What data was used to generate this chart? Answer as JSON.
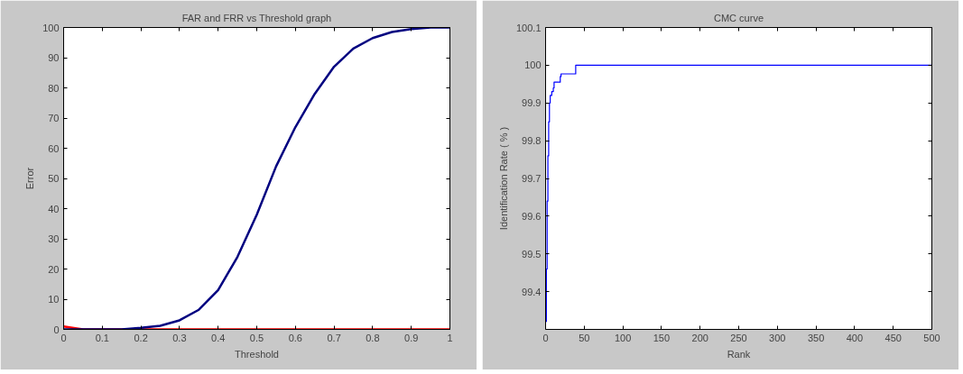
{
  "chart_data": [
    {
      "type": "line",
      "title": "FAR and FRR vs Threshold graph",
      "xlabel": "Threshold",
      "ylabel": "Error",
      "x": [
        0,
        0.05,
        0.1,
        0.15,
        0.2,
        0.25,
        0.3,
        0.35,
        0.4,
        0.45,
        0.5,
        0.55,
        0.6,
        0.65,
        0.7,
        0.75,
        0.8,
        0.85,
        0.9,
        0.95,
        1
      ],
      "series": [
        {
          "color": "#000080",
          "values": [
            0,
            0,
            0,
            0,
            0.5,
            1.2,
            3,
            6.5,
            13,
            24,
            38,
            54,
            67,
            78,
            87,
            93,
            96.5,
            98.5,
            99.5,
            100,
            100
          ]
        },
        {
          "color": "#ff0000",
          "values": [
            1,
            0,
            0,
            0,
            0,
            0,
            0,
            0,
            0,
            0,
            0,
            0,
            0,
            0,
            0,
            0,
            0,
            0,
            0,
            0,
            0
          ]
        }
      ],
      "xlim": [
        0,
        1
      ],
      "ylim": [
        0,
        100
      ],
      "xticks": [
        0,
        0.1,
        0.2,
        0.3,
        0.4,
        0.5,
        0.6,
        0.7,
        0.8,
        0.9,
        1
      ],
      "yticks": [
        0,
        10,
        20,
        30,
        40,
        50,
        60,
        70,
        80,
        90,
        100
      ],
      "grid": false
    },
    {
      "type": "step",
      "title": "CMC curve",
      "xlabel": "Rank",
      "ylabel": "Identification Rate ( % )",
      "x": [
        1,
        1,
        2,
        3,
        4,
        5,
        6,
        8,
        10,
        11,
        18,
        19,
        20,
        38,
        39,
        500
      ],
      "series": [
        {
          "color": "#0000ff",
          "values": [
            99.32,
            99.46,
            99.64,
            99.76,
            99.85,
            99.9,
            99.92,
            99.93,
            99.94,
            99.955,
            99.955,
            99.97,
            99.977,
            99.977,
            100,
            100
          ]
        }
      ],
      "xlim": [
        0,
        500
      ],
      "ylim": [
        99.3,
        100.1
      ],
      "xticks": [
        0,
        50,
        100,
        150,
        200,
        250,
        300,
        350,
        400,
        450,
        500
      ],
      "yticks": [
        99.4,
        99.5,
        99.6,
        99.7,
        99.8,
        99.9,
        100,
        100.1
      ],
      "grid": false
    }
  ]
}
